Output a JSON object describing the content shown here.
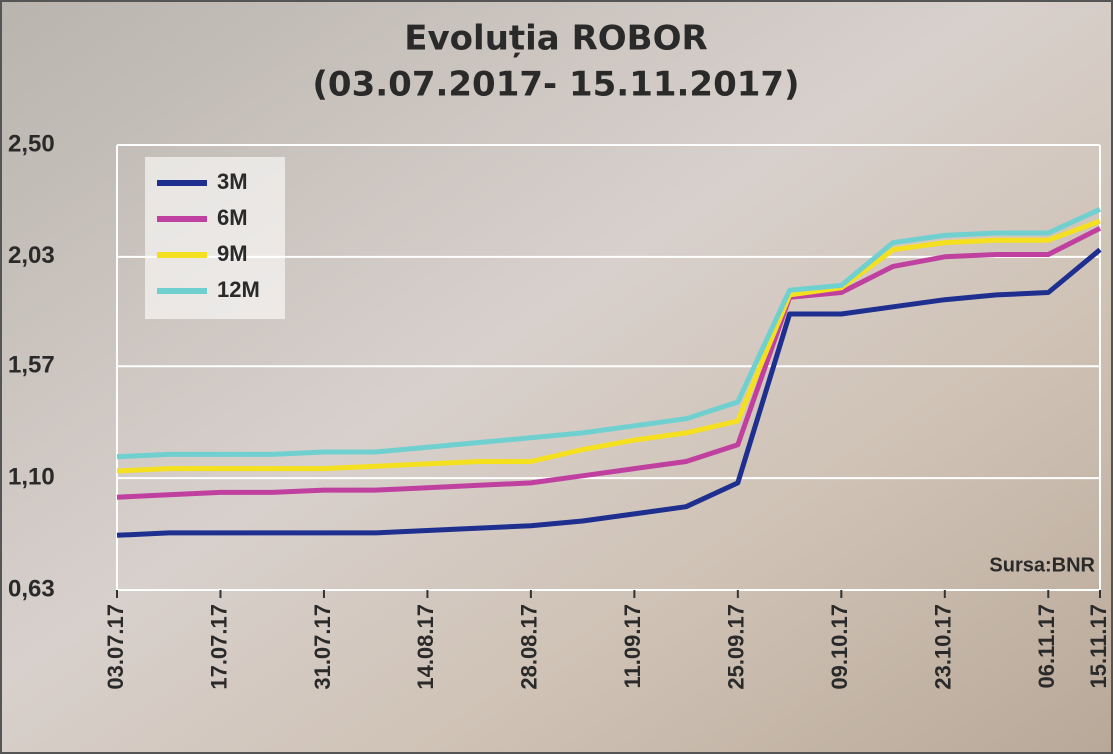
{
  "chart_data": {
    "type": "line",
    "title": "Evoluția ROBOR",
    "subtitle": "(03.07.2017- 15.11.2017)",
    "annotation": "Sursa:BNR",
    "categories": [
      "03.07.17",
      null,
      "17.07.17",
      null,
      "31.07.17",
      null,
      "14.08.17",
      null,
      "28.08.17",
      null,
      "11.09.17",
      null,
      "25.09.17",
      null,
      "09.10.17",
      null,
      "23.10.17",
      null,
      "06.11.17",
      "15.11.17"
    ],
    "series": [
      {
        "name": "3M",
        "color": "#1f2f8f",
        "values": [
          0.86,
          0.87,
          0.87,
          0.87,
          0.87,
          0.87,
          0.88,
          0.89,
          0.9,
          0.92,
          0.95,
          0.98,
          1.08,
          1.79,
          1.79,
          1.82,
          1.85,
          1.87,
          1.88,
          2.06
        ]
      },
      {
        "name": "6M",
        "color": "#c040a0",
        "values": [
          1.02,
          1.03,
          1.04,
          1.04,
          1.05,
          1.05,
          1.06,
          1.07,
          1.08,
          1.11,
          1.14,
          1.17,
          1.24,
          1.86,
          1.88,
          1.99,
          2.03,
          2.04,
          2.04,
          2.15
        ]
      },
      {
        "name": "9M",
        "color": "#f5e020",
        "values": [
          1.13,
          1.14,
          1.14,
          1.14,
          1.14,
          1.15,
          1.16,
          1.17,
          1.17,
          1.22,
          1.26,
          1.29,
          1.34,
          1.87,
          1.9,
          2.06,
          2.09,
          2.1,
          2.1,
          2.18
        ]
      },
      {
        "name": "12M",
        "color": "#70d0d0",
        "values": [
          1.19,
          1.2,
          1.2,
          1.2,
          1.21,
          1.21,
          1.23,
          1.25,
          1.27,
          1.29,
          1.32,
          1.35,
          1.42,
          1.89,
          1.91,
          2.09,
          2.12,
          2.13,
          2.13,
          2.23
        ]
      }
    ],
    "ylim": [
      0.63,
      2.5
    ],
    "yticks": [
      {
        "value": 0.63,
        "label": "0,63"
      },
      {
        "value": 1.1,
        "label": "1,10"
      },
      {
        "value": 1.57,
        "label": "1,57"
      },
      {
        "value": 2.03,
        "label": "2,03"
      },
      {
        "value": 2.5,
        "label": "2,50"
      }
    ],
    "grid": true,
    "legend": "top-left"
  }
}
